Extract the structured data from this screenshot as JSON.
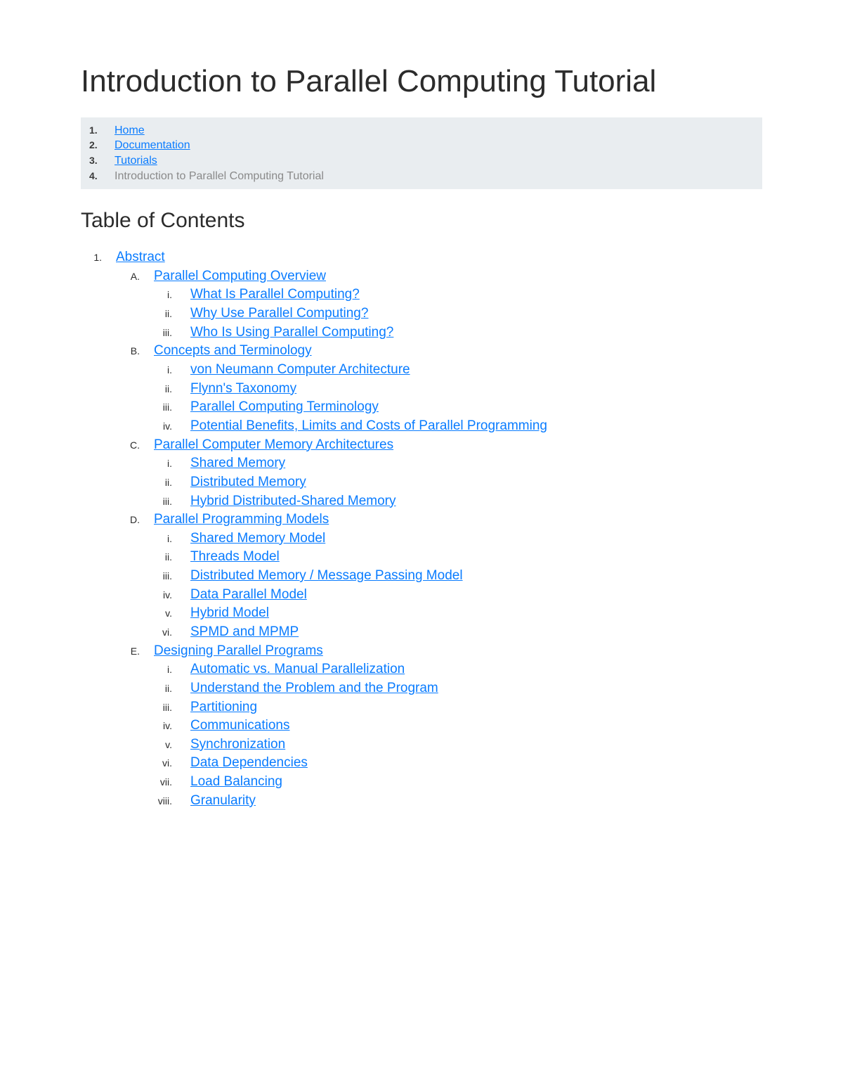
{
  "title": "Introduction to Parallel Computing Tutorial",
  "colors": {
    "link": "#0a7cff",
    "breadcrumb_bg": "#e9edf0",
    "text": "#2b2b2b",
    "muted": "#8a8a8a"
  },
  "breadcrumb": [
    {
      "n": "1.",
      "label": "Home",
      "link": true
    },
    {
      "n": "2.",
      "label": "Documentation",
      "link": true
    },
    {
      "n": "3.",
      "label": "Tutorials",
      "link": true
    },
    {
      "n": "4.",
      "label": "Introduction to Parallel Computing Tutorial",
      "link": false
    }
  ],
  "toc_title": "Table of Contents",
  "toc": {
    "n": "1.",
    "label": "Abstract",
    "sections": [
      {
        "n": "A.",
        "label": "Parallel Computing Overview",
        "items": [
          {
            "n": "i.",
            "label": "What Is Parallel Computing?"
          },
          {
            "n": "ii.",
            "label": "Why Use Parallel Computing?"
          },
          {
            "n": "iii.",
            "label": "Who Is Using Parallel Computing?"
          }
        ]
      },
      {
        "n": "B.",
        "label": "Concepts and Terminology",
        "items": [
          {
            "n": "i.",
            "label": "von Neumann Computer Architecture"
          },
          {
            "n": "ii.",
            "label": "Flynn's Taxonomy"
          },
          {
            "n": "iii.",
            "label": "Parallel Computing Terminology"
          },
          {
            "n": "iv.",
            "label": "Potential Benefits, Limits and Costs of Parallel Programming"
          }
        ]
      },
      {
        "n": "C.",
        "label": "Parallel Computer Memory Architectures",
        "items": [
          {
            "n": "i.",
            "label": "Shared Memory"
          },
          {
            "n": "ii.",
            "label": "Distributed Memory"
          },
          {
            "n": "iii.",
            "label": "Hybrid Distributed-Shared Memory"
          }
        ]
      },
      {
        "n": "D.",
        "label": "Parallel Programming Models",
        "items": [
          {
            "n": "i.",
            "label": "Shared Memory Model"
          },
          {
            "n": "ii.",
            "label": "Threads Model"
          },
          {
            "n": "iii.",
            "label": "Distributed Memory / Message Passing Model"
          },
          {
            "n": "iv.",
            "label": "Data Parallel Model"
          },
          {
            "n": "v.",
            "label": "Hybrid Model"
          },
          {
            "n": "vi.",
            "label": "SPMD and MPMP"
          }
        ]
      },
      {
        "n": "E.",
        "label": "Designing Parallel Programs",
        "items": [
          {
            "n": "i.",
            "label": "Automatic vs. Manual Parallelization"
          },
          {
            "n": "ii.",
            "label": "Understand the Problem and the Program"
          },
          {
            "n": "iii.",
            "label": "Partitioning"
          },
          {
            "n": "iv.",
            "label": "Communications"
          },
          {
            "n": "v.",
            "label": "Synchronization"
          },
          {
            "n": "vi.",
            "label": "Data Dependencies"
          },
          {
            "n": "vii.",
            "label": "Load Balancing"
          },
          {
            "n": "viii.",
            "label": "Granularity"
          }
        ]
      }
    ]
  }
}
